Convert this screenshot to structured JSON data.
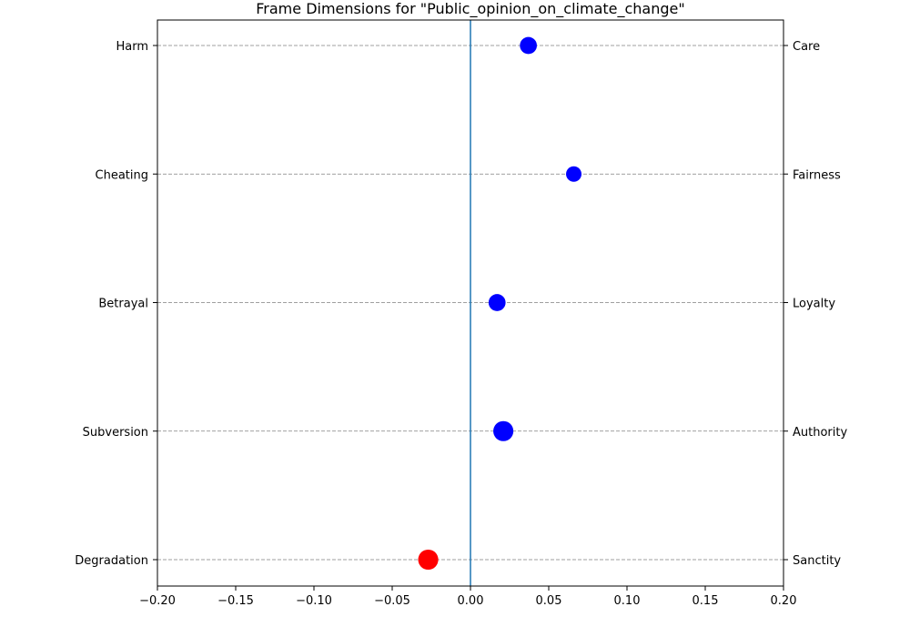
{
  "chart_data": {
    "type": "scatter",
    "title": "Frame Dimensions for \"Public_opinion_on_climate_change\"",
    "xlabel": "",
    "ylabel": "",
    "xlim": [
      -0.2,
      0.2
    ],
    "x_ticks": [
      {
        "value": -0.2,
        "label": "−0.20"
      },
      {
        "value": -0.15,
        "label": "−0.15"
      },
      {
        "value": -0.1,
        "label": "−0.10"
      },
      {
        "value": -0.05,
        "label": "−0.05"
      },
      {
        "value": 0.0,
        "label": "0.00"
      },
      {
        "value": 0.05,
        "label": "0.05"
      },
      {
        "value": 0.1,
        "label": "0.10"
      },
      {
        "value": 0.15,
        "label": "0.15"
      },
      {
        "value": 0.2,
        "label": "0.20"
      }
    ],
    "reference_line_x": 0.0,
    "grid": "horizontal dashed lines at each dimension",
    "legend": "none",
    "dimensions": [
      {
        "left_label": "Harm",
        "right_label": "Care",
        "value": 0.037,
        "weight": 1.1,
        "color": "#0000ff"
      },
      {
        "left_label": "Cheating",
        "right_label": "Fairness",
        "value": 0.066,
        "weight": 1.0,
        "color": "#0000ff"
      },
      {
        "left_label": "Betrayal",
        "right_label": "Loyalty",
        "value": 0.017,
        "weight": 1.1,
        "color": "#0000ff"
      },
      {
        "left_label": "Subversion",
        "right_label": "Authority",
        "value": 0.021,
        "weight": 1.3,
        "color": "#0000ff"
      },
      {
        "left_label": "Degradation",
        "right_label": "Sanctity",
        "value": -0.027,
        "weight": 1.3,
        "color": "#ff0000"
      }
    ],
    "colors": {
      "positive": "#0000ff",
      "negative": "#ff0000",
      "reference_line": "#1f77b4",
      "grid": "#808080"
    }
  }
}
